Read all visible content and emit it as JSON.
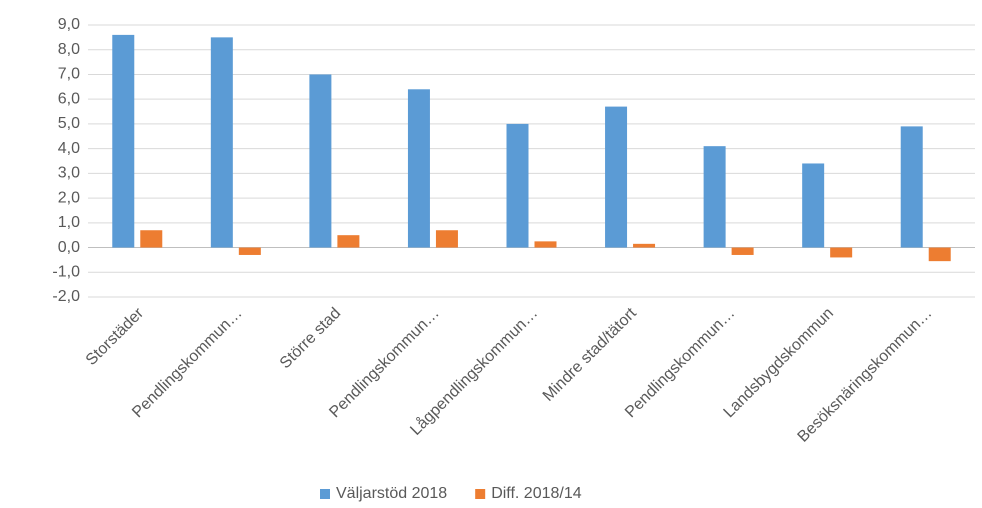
{
  "chart_data": {
    "type": "bar",
    "categories": [
      "Storstäder",
      "Pendlingskommun…",
      "Större stad",
      "Pendlingskommun…",
      "Lågpendlingskommun…",
      "Mindre stad/tätort",
      "Pendlingskommun…",
      "Landsbygdskommun",
      "Besöksnäringskommun…"
    ],
    "series": [
      {
        "name": "Väljarstöd 2018",
        "color": "#5b9bd5",
        "values": [
          8.6,
          8.5,
          7.0,
          6.4,
          5.0,
          5.7,
          4.1,
          3.4,
          4.9
        ]
      },
      {
        "name": "Diff. 2018/14",
        "color": "#ed7d31",
        "values": [
          0.7,
          -0.3,
          0.5,
          0.7,
          0.25,
          0.15,
          -0.3,
          -0.4,
          -0.55
        ]
      }
    ],
    "ylim": [
      -2,
      9
    ],
    "yticks": [
      {
        "value": -2,
        "label": "-2,0"
      },
      {
        "value": -1,
        "label": "-1,0"
      },
      {
        "value": 0,
        "label": "0,0"
      },
      {
        "value": 1,
        "label": "1,0"
      },
      {
        "value": 2,
        "label": "2,0"
      },
      {
        "value": 3,
        "label": "3,0"
      },
      {
        "value": 4,
        "label": "4,0"
      },
      {
        "value": 5,
        "label": "5,0"
      },
      {
        "value": 6,
        "label": "6,0"
      },
      {
        "value": 7,
        "label": "7,0"
      },
      {
        "value": 8,
        "label": "8,0"
      },
      {
        "value": 9,
        "label": "9,0"
      }
    ],
    "grid": true,
    "legend": "bottom"
  }
}
